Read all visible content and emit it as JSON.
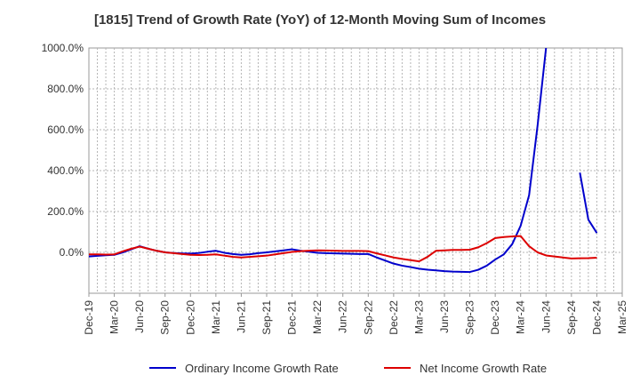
{
  "chart_data": {
    "type": "line",
    "title": "[1815]  Trend of Growth Rate (YoY) of 12-Month Moving Sum of Incomes",
    "xlabel": "",
    "ylabel": "",
    "ylim": [
      -200,
      1000
    ],
    "y_ticks": [
      0,
      200,
      400,
      600,
      800,
      1000
    ],
    "y_tick_labels": [
      "0.0%",
      "200.0%",
      "400.0%",
      "600.0%",
      "800.0%",
      "1000.0%"
    ],
    "x_tick_labels": [
      "Dec-19",
      "Mar-20",
      "Jun-20",
      "Sep-20",
      "Dec-20",
      "Mar-21",
      "Jun-21",
      "Sep-21",
      "Dec-21",
      "Mar-22",
      "Jun-22",
      "Sep-22",
      "Dec-22",
      "Mar-23",
      "Jun-23",
      "Sep-23",
      "Dec-23",
      "Mar-24",
      "Jun-24",
      "Sep-24",
      "Dec-24",
      "Mar-25"
    ],
    "grid": true,
    "legend_position": "bottom",
    "x": [
      "Dec-19",
      "Jan-20",
      "Feb-20",
      "Mar-20",
      "Apr-20",
      "May-20",
      "Jun-20",
      "Jul-20",
      "Aug-20",
      "Sep-20",
      "Oct-20",
      "Nov-20",
      "Dec-20",
      "Jan-21",
      "Feb-21",
      "Mar-21",
      "Apr-21",
      "May-21",
      "Jun-21",
      "Jul-21",
      "Aug-21",
      "Sep-21",
      "Oct-21",
      "Nov-21",
      "Dec-21",
      "Jan-22",
      "Feb-22",
      "Mar-22",
      "Apr-22",
      "May-22",
      "Jun-22",
      "Jul-22",
      "Aug-22",
      "Sep-22",
      "Oct-22",
      "Nov-22",
      "Dec-22",
      "Jan-23",
      "Feb-23",
      "Mar-23",
      "Apr-23",
      "May-23",
      "Jun-23",
      "Jul-23",
      "Aug-23",
      "Sep-23",
      "Oct-23",
      "Nov-23",
      "Dec-23",
      "Jan-24",
      "Feb-24",
      "Mar-24",
      "Apr-24",
      "May-24",
      "Jun-24",
      "Jul-24",
      "Aug-24",
      "Sep-24",
      "Oct-24",
      "Nov-24",
      "Dec-24"
    ],
    "series": [
      {
        "name": "Ordinary Income Growth Rate",
        "color": "#0000cc",
        "values": [
          -20,
          -17,
          -14,
          -12,
          0,
          15,
          30,
          18,
          8,
          0,
          -3,
          -5,
          -6,
          -3,
          3,
          8,
          -2,
          -8,
          -12,
          -9,
          -4,
          0,
          5,
          10,
          15,
          8,
          3,
          -2,
          -4,
          -5,
          -6,
          -7,
          -8,
          -8,
          -25,
          -40,
          -55,
          -65,
          -72,
          -80,
          -85,
          -88,
          -92,
          -94,
          -95,
          -96,
          -85,
          -65,
          -35,
          -10,
          40,
          130,
          280,
          620,
          1000,
          null,
          null,
          null,
          390,
          160,
          95
        ]
      },
      {
        "name": "Net Income Growth Rate",
        "color": "#dd0000",
        "values": [
          -10,
          -10,
          -11,
          -10,
          5,
          18,
          28,
          18,
          8,
          0,
          -4,
          -8,
          -12,
          -13,
          -12,
          -10,
          -16,
          -22,
          -25,
          -22,
          -19,
          -16,
          -10,
          -4,
          2,
          6,
          8,
          10,
          9,
          8,
          7,
          7,
          7,
          6,
          -5,
          -15,
          -25,
          -32,
          -38,
          -44,
          -22,
          8,
          10,
          12,
          12,
          13,
          25,
          45,
          70,
          75,
          78,
          80,
          30,
          0,
          -15,
          -20,
          -25,
          -30,
          -29,
          -28,
          -26
        ]
      }
    ]
  }
}
